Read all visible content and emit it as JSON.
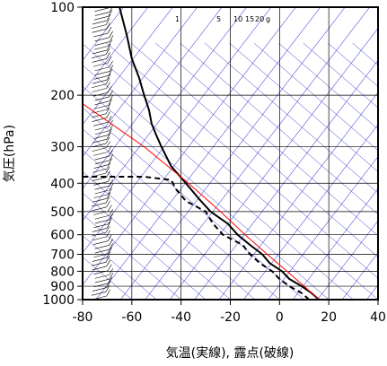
{
  "chart_data": {
    "type": "line",
    "xlabel": "気温(実線), 露点(破線)",
    "ylabel": "気圧(hPa)",
    "xlim": [
      -80,
      40
    ],
    "ylim": [
      1000,
      100
    ],
    "y_scale": "log",
    "x_ticks": [
      "-80",
      "-60",
      "-40",
      "-20",
      "0",
      "20",
      "40"
    ],
    "y_ticks": [
      "100",
      "200",
      "300",
      "400",
      "500",
      "600",
      "700",
      "800",
      "900",
      "1000"
    ],
    "mixing_ratio_labels": [
      "1",
      "5",
      "10",
      "15",
      "20",
      "g"
    ],
    "grid": true,
    "colors": {
      "temperature": "#000000",
      "dewpoint": "#000000",
      "parcel": "#ff0000",
      "skewed_isotherms": "#0000cc",
      "dry_adiabats": "#3333cc",
      "grid": "#000000"
    },
    "series": [
      {
        "style": "solid",
        "points": [
          [
            16,
            1000
          ],
          [
            13,
            950
          ],
          [
            9,
            900
          ],
          [
            4,
            850
          ],
          [
            1,
            800
          ],
          [
            -4,
            750
          ],
          [
            -7,
            700
          ],
          [
            -12,
            650
          ],
          [
            -17,
            600
          ],
          [
            -21,
            550
          ],
          [
            -28,
            500
          ],
          [
            -33,
            450
          ],
          [
            -38,
            400
          ],
          [
            -44,
            350
          ],
          [
            -48,
            300
          ],
          [
            -50,
            275
          ],
          [
            -52,
            250
          ],
          [
            -53,
            225
          ],
          [
            -55,
            200
          ],
          [
            -57,
            175
          ],
          [
            -60,
            150
          ],
          [
            -62,
            125
          ],
          [
            -65,
            100
          ]
        ]
      },
      {
        "style": "dashed",
        "points": [
          [
            12,
            1000
          ],
          [
            9,
            950
          ],
          [
            4,
            900
          ],
          [
            0,
            850
          ],
          [
            -3,
            800
          ],
          [
            -8,
            750
          ],
          [
            -12,
            700
          ],
          [
            -15,
            650
          ],
          [
            -23,
            600
          ],
          [
            -27,
            550
          ],
          [
            -30,
            500
          ],
          [
            -38,
            460
          ],
          [
            -42,
            420
          ],
          [
            -44,
            390
          ],
          [
            -55,
            380
          ],
          [
            -80,
            380
          ]
        ]
      },
      {
        "style": "parcel",
        "points": [
          [
            16,
            1000
          ],
          [
            10,
            900
          ],
          [
            3,
            800
          ],
          [
            -5,
            700
          ],
          [
            -14,
            600
          ],
          [
            -24,
            500
          ],
          [
            -37,
            400
          ],
          [
            -55,
            300
          ],
          [
            -85,
            200
          ]
        ]
      }
    ],
    "wind_barbs": {
      "present": true,
      "side": "left"
    }
  }
}
